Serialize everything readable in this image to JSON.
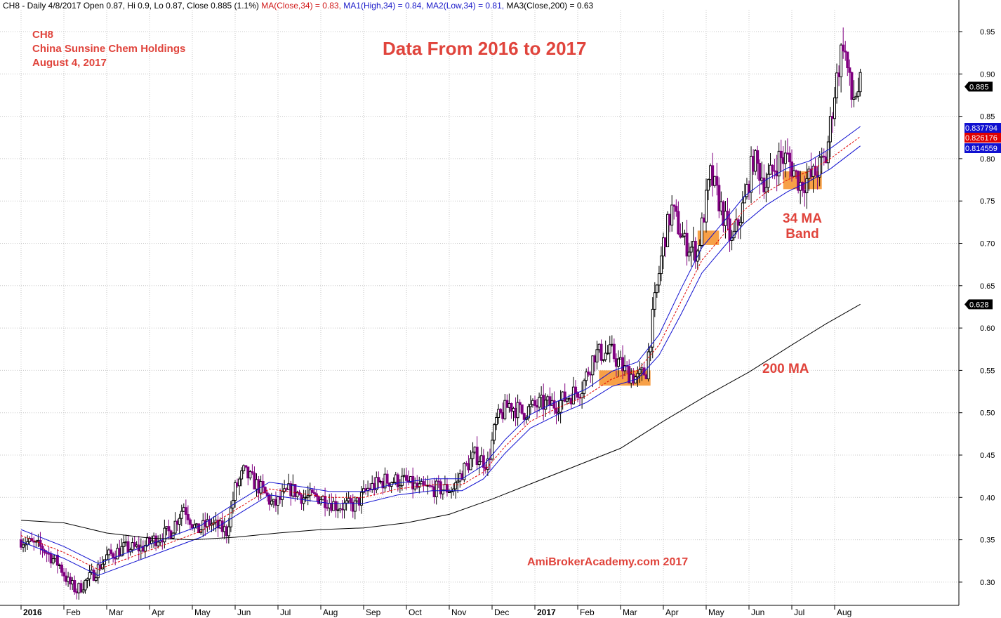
{
  "header": {
    "prefix": "CH8 - Daily 4/8/2017 Open 0.87, Hi 0.9, Lo 0.87, Close 0.885 (1.1%)",
    "ma": "MA(Close,34) = 0.83,",
    "ma1": "MA1(High,34) = 0.84,",
    "ma2": "MA2(Low,34) = 0.81,",
    "ma3": "MA3(Close,200) = 0.63"
  },
  "stock": {
    "ticker": "CH8",
    "name": "China Sunsine Chem Holdings",
    "date": "August 4, 2017"
  },
  "annotations": {
    "band_line1": "34 MA",
    "band_line2": "Band",
    "ma200": "200 MA",
    "site": "AmiBrokerAcademy.com 2017"
  },
  "colors": {
    "up": "#000000",
    "down": "#800080",
    "ma_close": "#e00000",
    "ma_band": "#1010d0",
    "ma200": "#000000",
    "highlight": "#f7a047",
    "grid": "#c8c8c8"
  },
  "chart_data": {
    "type": "line",
    "title": "Data From 2016 to 2017",
    "xlabel": "",
    "ylabel": "",
    "ylim": [
      0.27,
      0.97
    ],
    "y_ticks": [
      0.3,
      0.35,
      0.4,
      0.45,
      0.5,
      0.55,
      0.6,
      0.65,
      0.7,
      0.75,
      0.8,
      0.85,
      0.9,
      0.95
    ],
    "grid": true,
    "months": [
      {
        "label": "2016",
        "x": 0,
        "bold": true
      },
      {
        "label": "Feb",
        "x": 1
      },
      {
        "label": "Mar",
        "x": 2
      },
      {
        "label": "Apr",
        "x": 3
      },
      {
        "label": "May",
        "x": 4
      },
      {
        "label": "Jun",
        "x": 5
      },
      {
        "label": "Jul",
        "x": 6
      },
      {
        "label": "Aug",
        "x": 7
      },
      {
        "label": "Sep",
        "x": 8
      },
      {
        "label": "Oct",
        "x": 9
      },
      {
        "label": "Nov",
        "x": 10
      },
      {
        "label": "Dec",
        "x": 11
      },
      {
        "label": "2017",
        "x": 12,
        "bold": true
      },
      {
        "label": "Feb",
        "x": 13
      },
      {
        "label": "Mar",
        "x": 14
      },
      {
        "label": "Apr",
        "x": 15
      },
      {
        "label": "May",
        "x": 16
      },
      {
        "label": "Jun",
        "x": 17
      },
      {
        "label": "Jul",
        "x": 18
      },
      {
        "label": "Aug",
        "x": 19
      }
    ],
    "price_path": [
      [
        0.0,
        0.35
      ],
      [
        0.5,
        0.34
      ],
      [
        0.9,
        0.32
      ],
      [
        1.1,
        0.3
      ],
      [
        1.3,
        0.29
      ],
      [
        1.7,
        0.31
      ],
      [
        2.0,
        0.33
      ],
      [
        2.4,
        0.34
      ],
      [
        2.8,
        0.34
      ],
      [
        3.1,
        0.35
      ],
      [
        3.5,
        0.36
      ],
      [
        3.8,
        0.39
      ],
      [
        4.1,
        0.36
      ],
      [
        4.4,
        0.37
      ],
      [
        4.8,
        0.36
      ],
      [
        5.0,
        0.41
      ],
      [
        5.2,
        0.43
      ],
      [
        5.6,
        0.41
      ],
      [
        5.9,
        0.39
      ],
      [
        6.3,
        0.41
      ],
      [
        6.6,
        0.4
      ],
      [
        7.0,
        0.4
      ],
      [
        7.4,
        0.39
      ],
      [
        7.8,
        0.39
      ],
      [
        8.1,
        0.41
      ],
      [
        8.5,
        0.42
      ],
      [
        8.9,
        0.42
      ],
      [
        9.3,
        0.41
      ],
      [
        9.7,
        0.41
      ],
      [
        10.1,
        0.41
      ],
      [
        10.3,
        0.43
      ],
      [
        10.6,
        0.45
      ],
      [
        10.9,
        0.44
      ],
      [
        11.1,
        0.49
      ],
      [
        11.4,
        0.51
      ],
      [
        11.7,
        0.5
      ],
      [
        12.1,
        0.51
      ],
      [
        12.5,
        0.51
      ],
      [
        12.8,
        0.52
      ],
      [
        13.1,
        0.53
      ],
      [
        13.4,
        0.57
      ],
      [
        13.8,
        0.57
      ],
      [
        14.1,
        0.55
      ],
      [
        14.4,
        0.54
      ],
      [
        14.6,
        0.55
      ],
      [
        14.8,
        0.63
      ],
      [
        15.0,
        0.7
      ],
      [
        15.2,
        0.74
      ],
      [
        15.5,
        0.7
      ],
      [
        15.8,
        0.69
      ],
      [
        16.1,
        0.78
      ],
      [
        16.3,
        0.75
      ],
      [
        16.6,
        0.7
      ],
      [
        16.9,
        0.75
      ],
      [
        17.1,
        0.8
      ],
      [
        17.4,
        0.77
      ],
      [
        17.7,
        0.8
      ],
      [
        17.9,
        0.8
      ],
      [
        18.2,
        0.77
      ],
      [
        18.5,
        0.78
      ],
      [
        18.8,
        0.8
      ],
      [
        19.0,
        0.88
      ],
      [
        19.2,
        0.94
      ],
      [
        19.4,
        0.87
      ],
      [
        19.6,
        0.885
      ]
    ],
    "series": [
      {
        "name": "MA(Close,34)",
        "style": "dashed",
        "color": "#e00000",
        "last": 0.826176,
        "points": [
          [
            0.0,
            0.355
          ],
          [
            1.0,
            0.335
          ],
          [
            1.8,
            0.315
          ],
          [
            2.6,
            0.33
          ],
          [
            3.4,
            0.345
          ],
          [
            4.2,
            0.36
          ],
          [
            5.0,
            0.385
          ],
          [
            5.8,
            0.41
          ],
          [
            6.5,
            0.405
          ],
          [
            7.2,
            0.4
          ],
          [
            8.0,
            0.4
          ],
          [
            8.8,
            0.41
          ],
          [
            9.6,
            0.415
          ],
          [
            10.3,
            0.415
          ],
          [
            10.8,
            0.43
          ],
          [
            11.3,
            0.46
          ],
          [
            11.9,
            0.49
          ],
          [
            12.5,
            0.505
          ],
          [
            13.2,
            0.52
          ],
          [
            13.8,
            0.54
          ],
          [
            14.4,
            0.55
          ],
          [
            14.9,
            0.58
          ],
          [
            15.4,
            0.63
          ],
          [
            15.9,
            0.68
          ],
          [
            16.4,
            0.71
          ],
          [
            16.9,
            0.74
          ],
          [
            17.4,
            0.76
          ],
          [
            17.9,
            0.775
          ],
          [
            18.4,
            0.785
          ],
          [
            18.9,
            0.8
          ],
          [
            19.6,
            0.826
          ]
        ]
      },
      {
        "name": "MA1(High,34)",
        "style": "solid",
        "color": "#1010d0",
        "last": 0.837794,
        "points": [
          [
            0.0,
            0.362
          ],
          [
            1.0,
            0.342
          ],
          [
            1.8,
            0.322
          ],
          [
            2.6,
            0.337
          ],
          [
            3.4,
            0.352
          ],
          [
            4.2,
            0.367
          ],
          [
            5.0,
            0.393
          ],
          [
            5.8,
            0.418
          ],
          [
            6.5,
            0.413
          ],
          [
            7.2,
            0.407
          ],
          [
            8.0,
            0.407
          ],
          [
            8.8,
            0.417
          ],
          [
            9.6,
            0.422
          ],
          [
            10.3,
            0.422
          ],
          [
            10.8,
            0.438
          ],
          [
            11.3,
            0.468
          ],
          [
            11.9,
            0.498
          ],
          [
            12.5,
            0.513
          ],
          [
            13.2,
            0.528
          ],
          [
            13.8,
            0.549
          ],
          [
            14.4,
            0.56
          ],
          [
            14.9,
            0.592
          ],
          [
            15.4,
            0.645
          ],
          [
            15.9,
            0.695
          ],
          [
            16.4,
            0.725
          ],
          [
            16.9,
            0.756
          ],
          [
            17.4,
            0.775
          ],
          [
            17.9,
            0.789
          ],
          [
            18.4,
            0.797
          ],
          [
            18.9,
            0.812
          ],
          [
            19.6,
            0.838
          ]
        ]
      },
      {
        "name": "MA2(Low,34)",
        "style": "solid",
        "color": "#1010d0",
        "last": 0.814559,
        "points": [
          [
            0.0,
            0.348
          ],
          [
            1.0,
            0.328
          ],
          [
            1.8,
            0.308
          ],
          [
            2.6,
            0.323
          ],
          [
            3.4,
            0.338
          ],
          [
            4.2,
            0.353
          ],
          [
            5.0,
            0.378
          ],
          [
            5.8,
            0.403
          ],
          [
            6.5,
            0.398
          ],
          [
            7.2,
            0.393
          ],
          [
            8.0,
            0.393
          ],
          [
            8.8,
            0.403
          ],
          [
            9.6,
            0.408
          ],
          [
            10.3,
            0.408
          ],
          [
            10.8,
            0.422
          ],
          [
            11.3,
            0.452
          ],
          [
            11.9,
            0.482
          ],
          [
            12.5,
            0.497
          ],
          [
            13.2,
            0.512
          ],
          [
            13.8,
            0.531
          ],
          [
            14.4,
            0.54
          ],
          [
            14.9,
            0.568
          ],
          [
            15.4,
            0.615
          ],
          [
            15.9,
            0.665
          ],
          [
            16.4,
            0.695
          ],
          [
            16.9,
            0.724
          ],
          [
            17.4,
            0.745
          ],
          [
            17.9,
            0.761
          ],
          [
            18.4,
            0.773
          ],
          [
            18.9,
            0.788
          ],
          [
            19.6,
            0.815
          ]
        ]
      },
      {
        "name": "MA3(Close,200)",
        "style": "solid",
        "color": "#000000",
        "last": 0.628,
        "points": [
          [
            0.0,
            0.373
          ],
          [
            1.0,
            0.37
          ],
          [
            2.0,
            0.358
          ],
          [
            3.0,
            0.352
          ],
          [
            4.0,
            0.35
          ],
          [
            5.0,
            0.353
          ],
          [
            6.0,
            0.358
          ],
          [
            7.0,
            0.362
          ],
          [
            8.0,
            0.364
          ],
          [
            9.0,
            0.37
          ],
          [
            10.0,
            0.38
          ],
          [
            11.0,
            0.398
          ],
          [
            12.0,
            0.418
          ],
          [
            13.0,
            0.438
          ],
          [
            14.0,
            0.458
          ],
          [
            15.0,
            0.49
          ],
          [
            16.0,
            0.52
          ],
          [
            17.0,
            0.548
          ],
          [
            18.0,
            0.58
          ],
          [
            18.8,
            0.605
          ],
          [
            19.6,
            0.628
          ]
        ]
      }
    ],
    "last_close": 0.885,
    "tags": [
      {
        "value": 0.885,
        "label": "0.885",
        "color": "#000000"
      },
      {
        "value": 0.8378,
        "label": "0.837794",
        "color": "#1010d0"
      },
      {
        "value": 0.8262,
        "label": "0.826176",
        "color": "#e00000"
      },
      {
        "value": 0.8146,
        "label": "0.814559",
        "color": "#1010d0"
      },
      {
        "value": 0.628,
        "label": "0.628",
        "color": "#000000"
      }
    ],
    "highlights": [
      {
        "x0": 13.5,
        "x1": 14.7,
        "y0": 0.532,
        "y1": 0.55
      },
      {
        "x0": 15.8,
        "x1": 16.3,
        "y0": 0.698,
        "y1": 0.715
      },
      {
        "x0": 17.8,
        "x1": 18.7,
        "y0": 0.764,
        "y1": 0.785
      }
    ]
  }
}
